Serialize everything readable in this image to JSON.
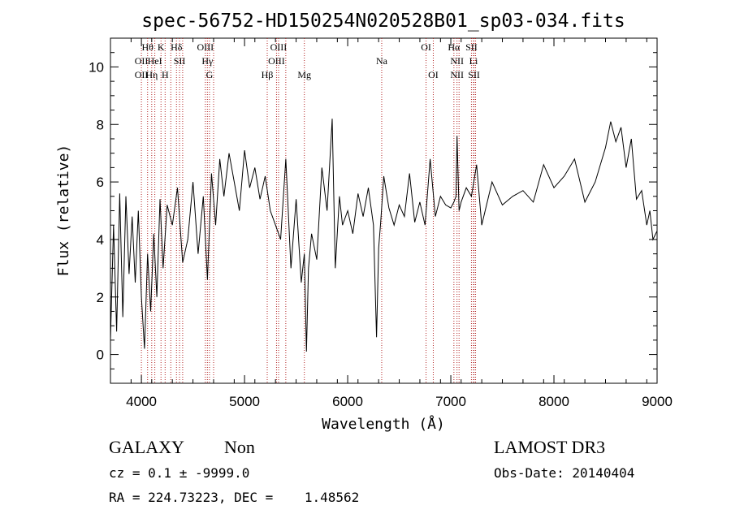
{
  "chart_data": {
    "type": "line",
    "title": "spec-56752-HD150254N020528B01_sp03-034.fits",
    "xlabel": "Wavelength (Å)",
    "ylabel": "Flux (relative)",
    "xlim": [
      3700,
      9000
    ],
    "ylim": [
      -1,
      11
    ],
    "xticks": [
      4000,
      5000,
      6000,
      7000,
      8000,
      9000
    ],
    "yticks": [
      0,
      2,
      4,
      6,
      8,
      10
    ],
    "grid": false,
    "series": [
      {
        "x": [
          3700,
          3730,
          3760,
          3790,
          3820,
          3850,
          3880,
          3910,
          3940,
          3970,
          4000,
          4030,
          4060,
          4090,
          4120,
          4150,
          4180,
          4210,
          4250,
          4300,
          4350,
          4400,
          4450,
          4500,
          4550,
          4600,
          4640,
          4680,
          4720,
          4760,
          4800,
          4850,
          4900,
          4950,
          5000,
          5050,
          5100,
          5150,
          5200,
          5250,
          5300,
          5350,
          5400,
          5450,
          5500,
          5550,
          5580,
          5600,
          5620,
          5650,
          5700,
          5750,
          5800,
          5850,
          5880,
          5920,
          5950,
          6000,
          6050,
          6100,
          6150,
          6200,
          6250,
          6280,
          6300,
          6320,
          6350,
          6400,
          6450,
          6500,
          6550,
          6600,
          6650,
          6700,
          6750,
          6800,
          6850,
          6900,
          6950,
          7000,
          7030,
          7050,
          7060,
          7080,
          7100,
          7150,
          7200,
          7250,
          7300,
          7400,
          7500,
          7600,
          7700,
          7800,
          7900,
          8000,
          8100,
          8200,
          8300,
          8400,
          8500,
          8550,
          8600,
          8650,
          8700,
          8750,
          8800,
          8850,
          8900,
          8930,
          8960,
          9000
        ],
        "y": [
          0.5,
          4.5,
          0.8,
          5.6,
          1.3,
          5.5,
          2.8,
          4.8,
          2.5,
          5.0,
          2.0,
          0.2,
          3.5,
          1.5,
          4.2,
          2.0,
          5.4,
          3.0,
          5.2,
          4.5,
          5.8,
          3.2,
          4.0,
          6.0,
          3.5,
          5.5,
          2.6,
          6.3,
          4.5,
          6.8,
          5.5,
          7.0,
          6.0,
          5.0,
          7.1,
          5.8,
          6.5,
          5.4,
          6.2,
          5.0,
          4.5,
          4.0,
          6.8,
          3.0,
          5.4,
          2.5,
          3.5,
          0.1,
          3.0,
          4.2,
          3.3,
          6.5,
          5.0,
          8.2,
          3.0,
          5.5,
          4.5,
          5.0,
          4.2,
          5.6,
          4.8,
          5.8,
          4.5,
          0.6,
          3.7,
          4.6,
          6.2,
          5.1,
          4.5,
          5.2,
          4.8,
          6.3,
          4.6,
          5.3,
          4.5,
          6.8,
          4.8,
          5.5,
          5.2,
          5.1,
          5.3,
          5.5,
          7.6,
          5.0,
          5.3,
          5.8,
          5.5,
          6.6,
          4.5,
          6.0,
          5.2,
          5.5,
          5.7,
          5.3,
          6.6,
          5.8,
          6.2,
          6.8,
          5.3,
          6.0,
          7.2,
          8.1,
          7.4,
          7.9,
          6.5,
          7.5,
          5.4,
          5.7,
          4.5,
          5.0,
          4.0,
          4.3
        ]
      }
    ],
    "line_markers": [
      {
        "x": 4000,
        "label": "OII",
        "row": 2
      },
      {
        "x": 4000,
        "label": "OII",
        "row": 3
      },
      {
        "x": 4060,
        "label": "Hθ",
        "row": 1
      },
      {
        "x": 4100,
        "label": "Hη",
        "row": 3
      },
      {
        "x": 4130,
        "label": "HeI",
        "row": 2
      },
      {
        "x": 4190,
        "label": "K",
        "row": 1
      },
      {
        "x": 4230,
        "label": "H",
        "row": 3
      },
      {
        "x": 4285,
        "label": "",
        "row": 0
      },
      {
        "x": 4340,
        "label": "Hδ",
        "row": 1
      },
      {
        "x": 4370,
        "label": "SII",
        "row": 2
      },
      {
        "x": 4400,
        "label": "",
        "row": 0
      },
      {
        "x": 4620,
        "label": "OIII",
        "row": 1
      },
      {
        "x": 4640,
        "label": "Hγ",
        "row": 2
      },
      {
        "x": 4660,
        "label": "G",
        "row": 3
      },
      {
        "x": 4700,
        "label": "",
        "row": 0
      },
      {
        "x": 5220,
        "label": "Hβ",
        "row": 3
      },
      {
        "x": 5330,
        "label": "OIII",
        "row": 1
      },
      {
        "x": 5310,
        "label": "OIII",
        "row": 2
      },
      {
        "x": 5400,
        "label": "",
        "row": 0
      },
      {
        "x": 5580,
        "label": "Mg",
        "row": 3
      },
      {
        "x": 6330,
        "label": "Na",
        "row": 2
      },
      {
        "x": 6760,
        "label": "OI",
        "row": 1
      },
      {
        "x": 6830,
        "label": "OI",
        "row": 3
      },
      {
        "x": 7030,
        "label": "Hα",
        "row": 1
      },
      {
        "x": 7060,
        "label": "NII",
        "row": 2
      },
      {
        "x": 7060,
        "label": "NII",
        "row": 3
      },
      {
        "x": 7080,
        "label": "",
        "row": 0
      },
      {
        "x": 7200,
        "label": "SII",
        "row": 1
      },
      {
        "x": 7220,
        "label": "Li",
        "row": 2
      },
      {
        "x": 7225,
        "label": "SII",
        "row": 3
      },
      {
        "x": 7240,
        "label": "",
        "row": 0
      }
    ]
  },
  "info": {
    "class": "GALAXY",
    "subclass": "Non",
    "survey": "LAMOST DR3",
    "cz": "cz = 0.1 ± -9999.0",
    "obs_date": "Obs-Date: 20140404",
    "radec": "RA = 224.73223, DEC =    1.48562"
  }
}
